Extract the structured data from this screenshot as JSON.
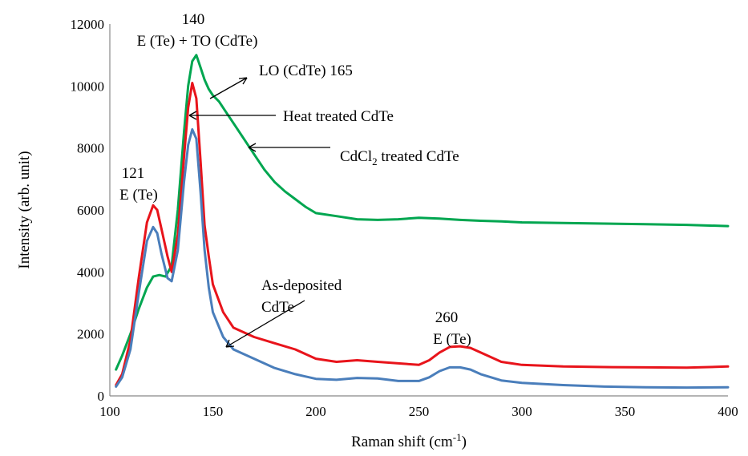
{
  "chart_data": {
    "type": "line",
    "xlabel": "Raman shift (cm",
    "xlabel_sup": "-1",
    "xlabel_tail": ")",
    "ylabel": "Intensity (arb. unit)",
    "xlim": [
      100,
      400
    ],
    "ylim": [
      0,
      12000
    ],
    "xticks": [
      100,
      150,
      200,
      250,
      300,
      350,
      400
    ],
    "yticks": [
      0,
      2000,
      4000,
      6000,
      8000,
      10000,
      12000
    ],
    "grid": false,
    "legend": "none",
    "series": [
      {
        "color": "#00a650",
        "x": [
          103,
          106,
          110,
          114,
          118,
          121,
          124,
          127,
          130,
          133,
          136,
          138,
          140,
          142,
          144,
          146,
          148,
          150,
          153,
          156,
          160,
          165,
          170,
          175,
          180,
          185,
          190,
          195,
          200,
          210,
          220,
          230,
          240,
          250,
          260,
          270,
          280,
          290,
          300,
          320,
          340,
          360,
          380,
          400
        ],
        "y": [
          850,
          1300,
          2000,
          2800,
          3500,
          3850,
          3900,
          3850,
          4200,
          6000,
          8500,
          10000,
          10800,
          11000,
          10600,
          10200,
          9900,
          9700,
          9500,
          9200,
          8800,
          8300,
          7800,
          7300,
          6900,
          6600,
          6350,
          6100,
          5900,
          5800,
          5700,
          5680,
          5700,
          5750,
          5720,
          5680,
          5650,
          5630,
          5600,
          5580,
          5560,
          5540,
          5520,
          5480
        ]
      },
      {
        "color": "#e8141b",
        "x": [
          103,
          106,
          110,
          114,
          118,
          121,
          123,
          125,
          128,
          130,
          133,
          136,
          138,
          140,
          142,
          144,
          146,
          148,
          150,
          155,
          160,
          170,
          180,
          190,
          200,
          210,
          220,
          230,
          240,
          250,
          255,
          260,
          265,
          270,
          275,
          280,
          290,
          300,
          320,
          340,
          360,
          380,
          400
        ],
        "y": [
          350,
          700,
          1800,
          3800,
          5600,
          6150,
          6000,
          5400,
          4500,
          4000,
          5200,
          7700,
          9300,
          10100,
          9600,
          7600,
          5500,
          4500,
          3600,
          2700,
          2200,
          1900,
          1700,
          1500,
          1200,
          1100,
          1150,
          1100,
          1050,
          1000,
          1150,
          1400,
          1580,
          1600,
          1550,
          1400,
          1100,
          1000,
          950,
          930,
          920,
          910,
          950
        ]
      },
      {
        "color": "#4a7ebb",
        "x": [
          103,
          106,
          110,
          114,
          118,
          121,
          123,
          125,
          128,
          130,
          133,
          136,
          138,
          140,
          142,
          144,
          146,
          148,
          150,
          155,
          160,
          170,
          180,
          190,
          200,
          210,
          220,
          230,
          240,
          250,
          255,
          260,
          265,
          270,
          275,
          280,
          290,
          300,
          320,
          340,
          360,
          380,
          400
        ],
        "y": [
          300,
          600,
          1500,
          3300,
          5000,
          5450,
          5250,
          4600,
          3800,
          3700,
          4700,
          6900,
          8100,
          8600,
          8300,
          6600,
          4700,
          3500,
          2700,
          1900,
          1500,
          1200,
          900,
          700,
          550,
          520,
          580,
          560,
          480,
          480,
          600,
          800,
          920,
          920,
          850,
          700,
          500,
          420,
          350,
          300,
          280,
          270,
          280
        ]
      }
    ],
    "annotations": [
      {
        "lines": [
          "140",
          "E (Te) + TO (CdTe)"
        ]
      },
      {
        "text": "LO (CdTe) 165"
      },
      {
        "text": "Heat treated CdTe"
      },
      {
        "text_main": "CdCl",
        "text_sub": "2",
        "text_tail": " treated CdTe"
      },
      {
        "lines": [
          "121",
          "E (Te)"
        ]
      },
      {
        "lines": [
          "As-deposited",
          "CdTe"
        ]
      },
      {
        "lines": [
          "260",
          "E (Te)"
        ]
      }
    ]
  },
  "colors": {
    "green_series": "#00a650",
    "red_series": "#e8141b",
    "blue_series": "#4a7ebb",
    "axis": "#888888"
  }
}
